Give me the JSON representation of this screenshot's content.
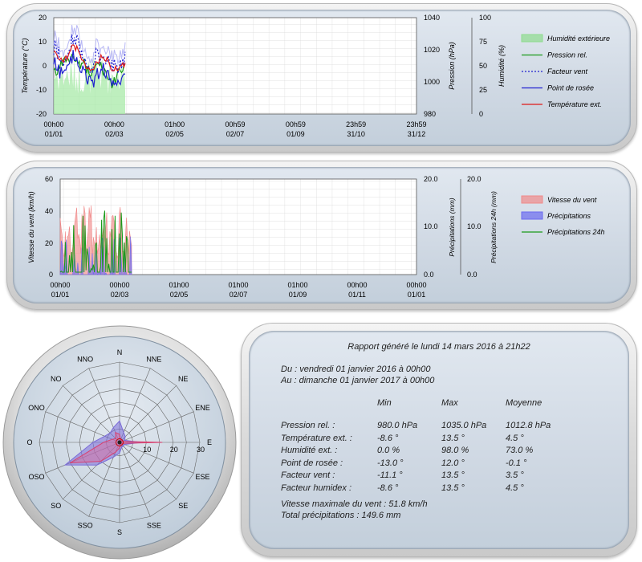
{
  "chart1": {
    "y_left": {
      "label": "Température (°C)",
      "ticks": [
        "20",
        "10",
        "0",
        "-10",
        "-20"
      ]
    },
    "y_press": {
      "label": "Pression (hPa)",
      "ticks": [
        "1040",
        "1020",
        "1000",
        "980"
      ]
    },
    "y_hum": {
      "label": "Humidité (%)",
      "ticks": [
        "100",
        "75",
        "50",
        "25",
        "0"
      ]
    },
    "x_ticks": [
      {
        "time": "00h00",
        "date": "01/01"
      },
      {
        "time": "00h00",
        "date": "02/03"
      },
      {
        "time": "01h00",
        "date": "02/05"
      },
      {
        "time": "00h59",
        "date": "02/07"
      },
      {
        "time": "00h59",
        "date": "01/09"
      },
      {
        "time": "23h59",
        "date": "31/10"
      },
      {
        "time": "23h59",
        "date": "31/12"
      }
    ],
    "legend": [
      {
        "label": "Humidité extérieure",
        "color": "#8fdc8f",
        "kind": "area"
      },
      {
        "label": "Pression rel.",
        "color": "#1a9a1a",
        "kind": "line"
      },
      {
        "label": "Facteur vent",
        "color": "#1f1fd0",
        "kind": "dash"
      },
      {
        "label": "Point de rosée",
        "color": "#1f1fd0",
        "kind": "line"
      },
      {
        "label": "Température ext.",
        "color": "#e01818",
        "kind": "line"
      }
    ]
  },
  "chart2": {
    "y_left": {
      "label": "Vitesse du vent (km/h)",
      "ticks": [
        "60",
        "40",
        "20",
        "0"
      ]
    },
    "y_precip": {
      "label": "Précipitations (mm)",
      "ticks": [
        "20.0",
        "10.0",
        "0.0"
      ]
    },
    "y_precip24": {
      "label": "Précipitations 24h (mm)",
      "ticks": [
        "20.0",
        "10.0",
        "0.0"
      ]
    },
    "x_ticks": [
      {
        "time": "00h00",
        "date": "01/01"
      },
      {
        "time": "00h00",
        "date": "02/03"
      },
      {
        "time": "01h00",
        "date": "02/05"
      },
      {
        "time": "01h00",
        "date": "02/07"
      },
      {
        "time": "01h00",
        "date": "01/09"
      },
      {
        "time": "00h00",
        "date": "01/11"
      },
      {
        "time": "00h00",
        "date": "01/01"
      }
    ],
    "legend": [
      {
        "label": "Vitesse du vent",
        "color": "#f08a8a",
        "kind": "area"
      },
      {
        "label": "Précipitations",
        "color": "#6b6bf0",
        "kind": "area"
      },
      {
        "label": "Précipitations 24h",
        "color": "#1a9a1a",
        "kind": "line"
      }
    ]
  },
  "rose": {
    "directions": [
      "N",
      "NNE",
      "NE",
      "ENE",
      "E",
      "ESE",
      "SE",
      "SSE",
      "S",
      "SSO",
      "SO",
      "OSO",
      "O",
      "ONO",
      "NO",
      "NNO"
    ],
    "scale_labels": [
      "10",
      "20",
      "30"
    ]
  },
  "report": {
    "title": "Rapport généré le lundi 14 mars 2016 à 21h22",
    "from": "Du : vendredi 01 janvier 2016 à 00h00",
    "to": "Au : dimanche 01 janvier 2017 à 00h00",
    "headers": [
      "Min",
      "Max",
      "Moyenne"
    ],
    "rows": [
      {
        "label": "Pression rel. :",
        "min": "980.0 hPa",
        "max": "1035.0 hPa",
        "avg": "1012.8 hPa"
      },
      {
        "label": "Température ext. :",
        "min": "-8.6 °",
        "max": "13.5 °",
        "avg": "4.5 °"
      },
      {
        "label": "Humidité ext. :",
        "min": "0.0 %",
        "max": "98.0 %",
        "avg": "73.0 %"
      },
      {
        "label": "Point de rosée :",
        "min": "-13.0 °",
        "max": "12.0 °",
        "avg": "-0.1 °"
      },
      {
        "label": "Facteur vent :",
        "min": "-11.1 °",
        "max": "13.5 °",
        "avg": "3.5 °"
      },
      {
        "label": "Facteur humidex :",
        "min": "-8.6 °",
        "max": "13.5 °",
        "avg": "4.5 °"
      }
    ],
    "wind_max": "Vitesse maximale du vent : 51.8 km/h",
    "total_precip": "Total précipitations : 149.6 mm"
  }
}
